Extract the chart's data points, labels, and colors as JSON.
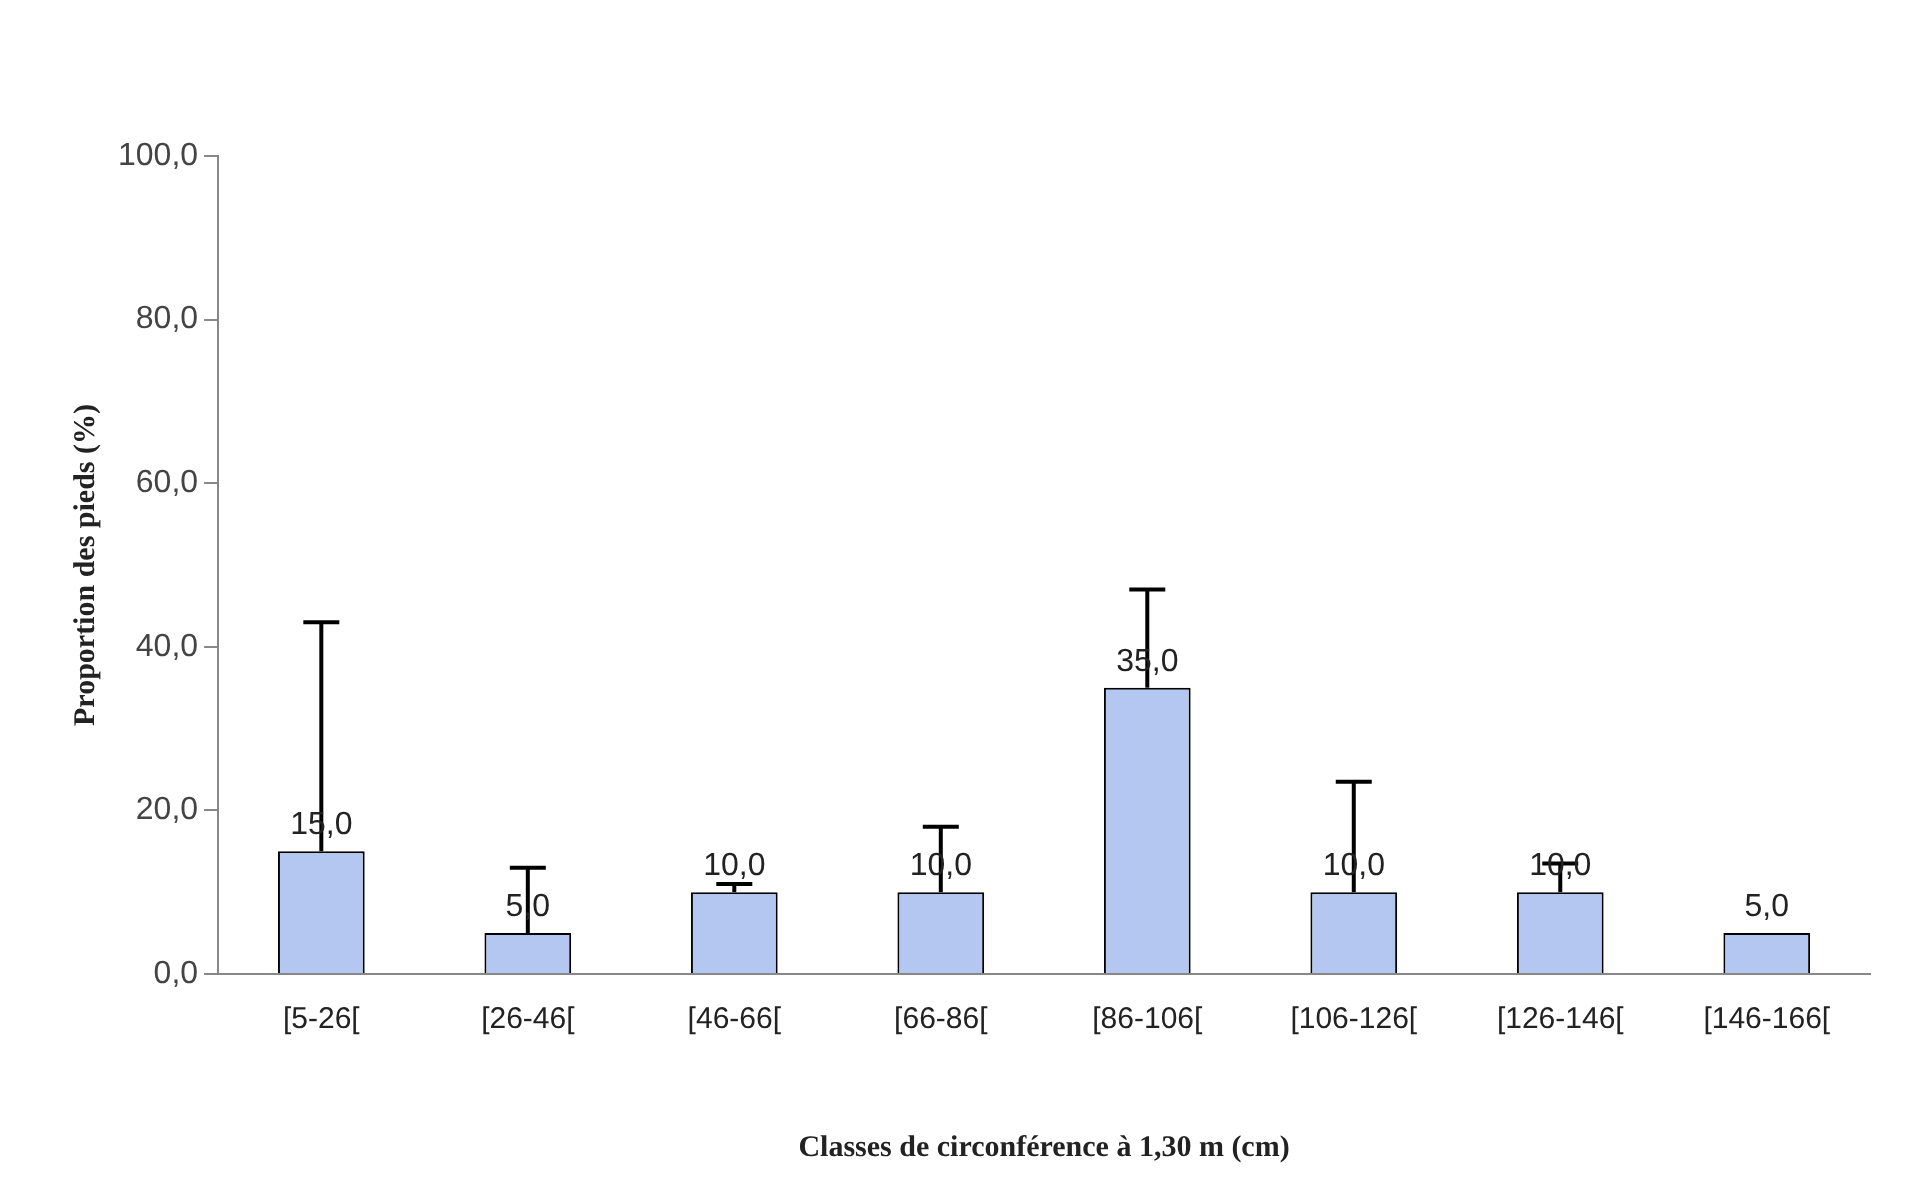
{
  "chart_data": {
    "type": "bar",
    "xlabel": "Classes de circonférence à 1,30 m (cm)",
    "ylabel": "Proportion des pieds (%)",
    "categories": [
      "[5-26[",
      "[26-46[",
      "[46-66[",
      "[66-86[",
      "[86-106[",
      "[106-126[",
      "[126-146[",
      "[146-166["
    ],
    "values": [
      15,
      5,
      10,
      10,
      35,
      10,
      10,
      5
    ],
    "value_labels": [
      "15,0",
      "5,0",
      "10,0",
      "10,0",
      "35,0",
      "10,0",
      "10,0",
      "5,0"
    ],
    "errors": [
      [
        15,
        43
      ],
      [
        5,
        13
      ],
      [
        10,
        11
      ],
      [
        10,
        18
      ],
      [
        35,
        47
      ],
      [
        10,
        23.5
      ],
      [
        10,
        13.5
      ],
      null
    ],
    "color": "#b4c7f0",
    "ylim": [
      0,
      100
    ],
    "yticks": [
      {
        "value": 0,
        "label": "0,0"
      },
      {
        "value": 20,
        "label": "20,0"
      },
      {
        "value": 40,
        "label": "40,0"
      },
      {
        "value": 60,
        "label": "60,0"
      },
      {
        "value": 80,
        "label": "80,0"
      },
      {
        "value": 100,
        "label": "100,0"
      }
    ],
    "grid": false,
    "legend": false
  }
}
